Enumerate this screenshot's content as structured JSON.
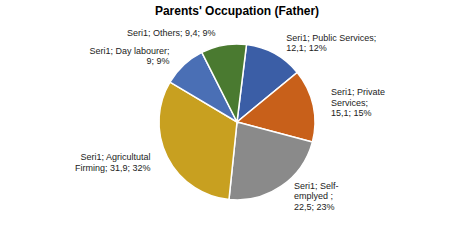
{
  "chart_data": {
    "type": "pie",
    "title": "Parents' Occupation (Father)",
    "values": [
      12.1,
      15.1,
      22.5,
      31.9,
      9.0,
      9.4
    ],
    "value_labels": [
      "Seri1; Public Services;\n12,1; 12%",
      "Seri1; Private\nServices;\n15,1; 15%",
      "Seri1; Self-\nemplyed ;\n22,5; 23%",
      "Seri1; Agricultutal\nFirming; 31,9; 32%",
      "Seri1; Day labourer;\n9; 9%",
      "Seri1; Others; 9,4; 9%"
    ],
    "colors": [
      "#3b5ea6",
      "#c8601a",
      "#8a8a8a",
      "#c8a020",
      "#4a6fb5",
      "#4a7a30"
    ],
    "data_labels": true
  }
}
